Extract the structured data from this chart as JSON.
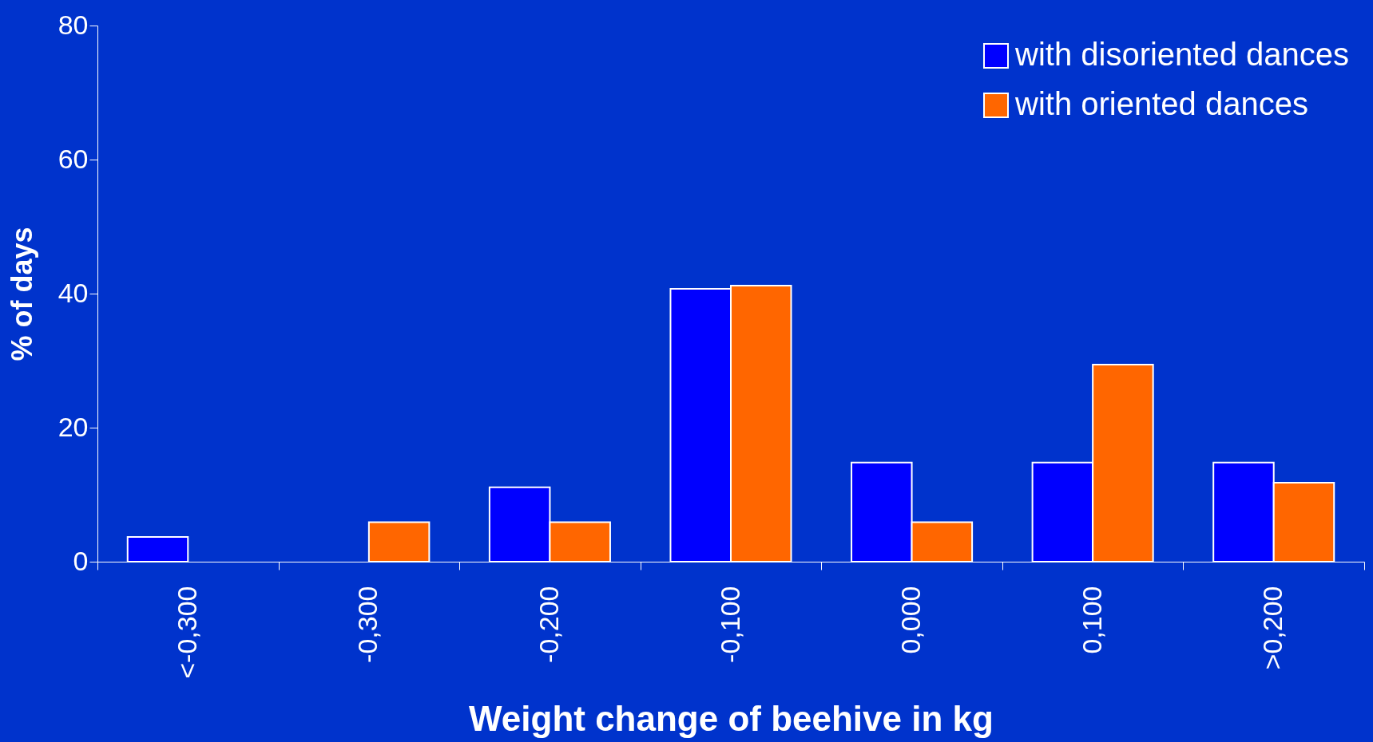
{
  "chart_data": {
    "type": "bar",
    "xlabel": "Weight change of beehive in kg",
    "ylabel": "% of days",
    "categories": [
      "<-0,300",
      "-0,300",
      "-0,200",
      "-0,100",
      "0,000",
      "0,100",
      ">0,200"
    ],
    "series": [
      {
        "name": "with disoriented dances",
        "color": "#0000ff",
        "values": [
          3.7,
          null,
          11.1,
          40.7,
          14.8,
          14.8,
          14.8
        ]
      },
      {
        "name": "with oriented dances",
        "color": "#ff6600",
        "values": [
          null,
          5.9,
          5.9,
          41.2,
          5.9,
          29.4,
          11.8
        ]
      }
    ],
    "ylim": [
      0,
      80
    ],
    "yticks": [
      0,
      20,
      40,
      60,
      80
    ],
    "grid": false,
    "legend": "top right"
  }
}
